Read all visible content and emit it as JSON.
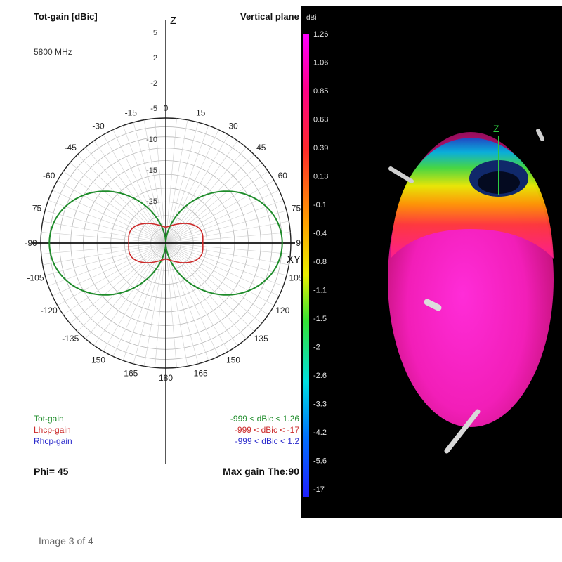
{
  "caption": "Image 3 of 4",
  "chart_data": [
    {
      "type": "polar",
      "title": "Tot-gain [dBic]",
      "subtitle": "Vertical plane",
      "frequency": "5800 MHz",
      "axis_z": "Z",
      "axis_xy": "XY",
      "phi_label": "Phi= 45",
      "max_gain_label": "Max gain The:90",
      "radial_ticks": [
        "5",
        "2",
        "-2",
        "-5",
        "-10",
        "-15",
        "-25"
      ],
      "angle_ticks": [
        "0",
        "15",
        "30",
        "45",
        "60",
        "75",
        "90",
        "105",
        "120",
        "135",
        "150",
        "165",
        "180",
        "165",
        "150",
        "135",
        "120",
        "105",
        "90",
        "75",
        "60",
        "45",
        "30",
        "15"
      ],
      "angle_tick_display": [
        "0",
        "15",
        "30",
        "45",
        "60",
        "75",
        "90",
        "105",
        "120",
        "135",
        "150",
        "165",
        "180",
        "165",
        "150",
        "-135",
        "-120",
        "-105",
        "-90",
        "-75",
        "-60",
        "-45",
        "-30",
        "-15"
      ],
      "series": [
        {
          "name": "Tot-gain",
          "range": "-999 < dBic < 1.26",
          "color": "#1e8c2a"
        },
        {
          "name": "Lhcp-gain",
          "range": "-999 < dBic < -17",
          "color": "#cc2a2a"
        },
        {
          "name": "Rhcp-gain",
          "range": "-999 < dBic < 1.2",
          "color": "#2a2acc"
        }
      ]
    },
    {
      "type": "3d-pattern",
      "colorbar_unit": "dBi",
      "colorbar_ticks": [
        "1.26",
        "1.06",
        "0.85",
        "0.63",
        "0.39",
        "0.13",
        "-0.1",
        "-0.4",
        "-0.8",
        "-1.1",
        "-1.5",
        "-2",
        "-2.6",
        "-3.3",
        "-4.2",
        "-5.6",
        "-17"
      ],
      "axis_z": "Z"
    }
  ]
}
